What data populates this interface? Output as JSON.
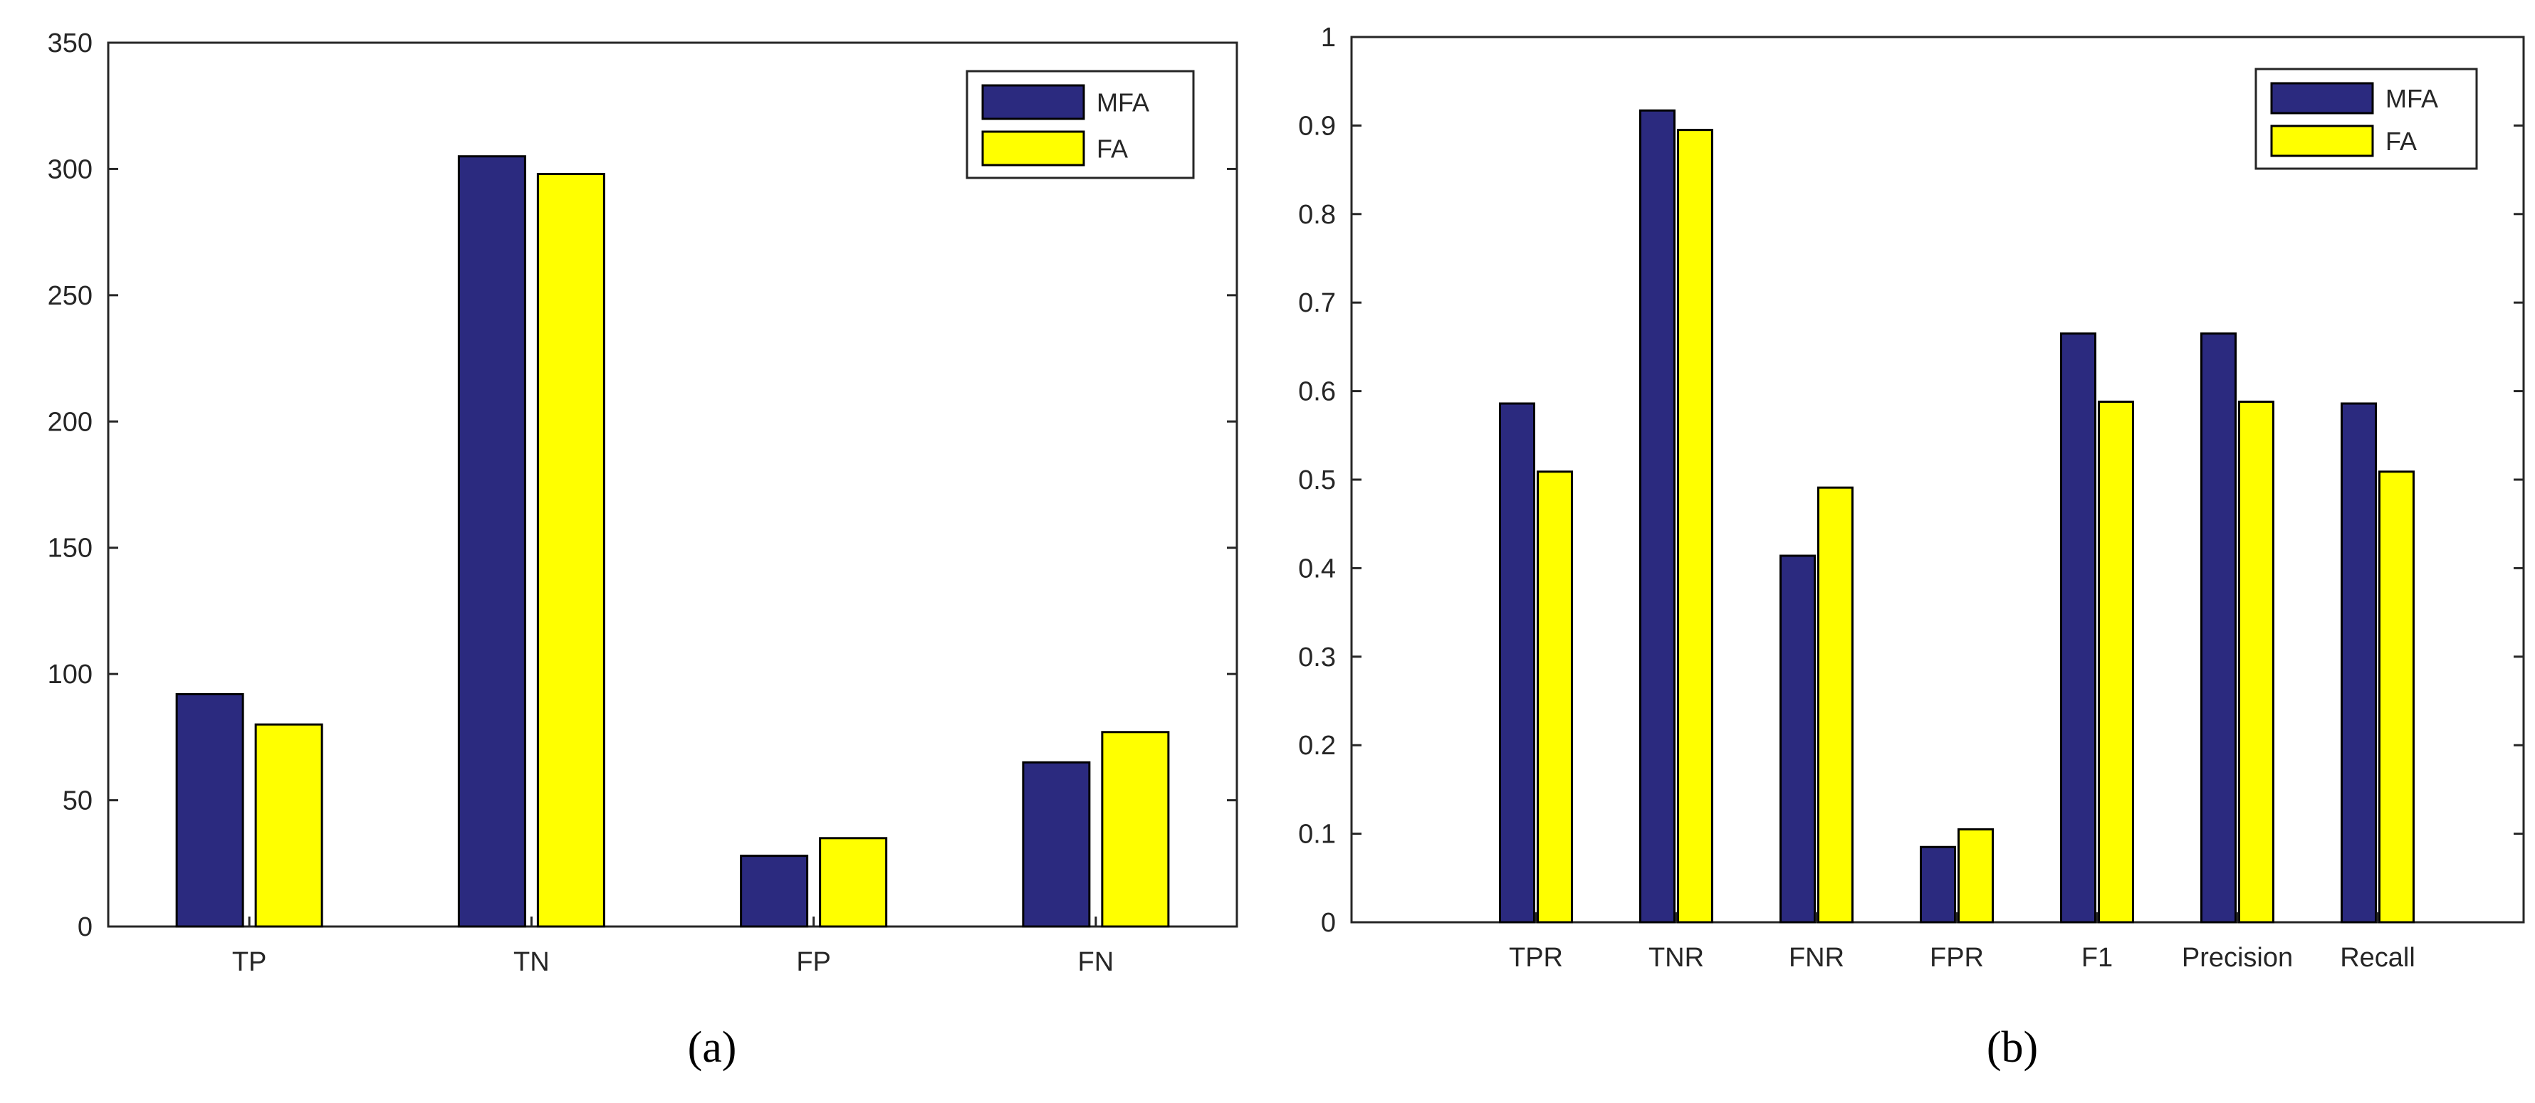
{
  "chart_data": [
    {
      "type": "bar",
      "panel": "(a)",
      "categories": [
        "TP",
        "TN",
        "FP",
        "FN"
      ],
      "series": [
        {
          "name": "MFA",
          "color": "#2b2a7f",
          "values": [
            92,
            305,
            28,
            65
          ]
        },
        {
          "name": "FA",
          "color": "#ffff00",
          "values": [
            80,
            298,
            35,
            77
          ]
        }
      ],
      "ylim": [
        0,
        350
      ],
      "yticks": [
        0,
        50,
        100,
        150,
        200,
        250,
        300,
        350
      ],
      "ytick_labels": [
        "0",
        "50",
        "100",
        "150",
        "200",
        "250",
        "300",
        "350"
      ],
      "title": "",
      "xlabel": "",
      "ylabel": "",
      "legend_position": "top-right",
      "grid": false
    },
    {
      "type": "bar",
      "panel": "(b)",
      "categories": [
        "TPR",
        "TNR",
        "FNR",
        "FPR",
        "F1",
        "Precision",
        "Recall"
      ],
      "series": [
        {
          "name": "MFA",
          "color": "#2b2a7f",
          "values": [
            0.586,
            0.917,
            0.414,
            0.085,
            0.665,
            0.665,
            0.586
          ]
        },
        {
          "name": "FA",
          "color": "#ffff00",
          "values": [
            0.509,
            0.895,
            0.491,
            0.105,
            0.588,
            0.588,
            0.509
          ]
        }
      ],
      "ylim": [
        0,
        1
      ],
      "yticks": [
        0,
        0.1,
        0.2,
        0.3,
        0.4,
        0.5,
        0.6,
        0.7,
        0.8,
        0.9,
        1
      ],
      "ytick_labels": [
        "0",
        "0.1",
        "0.2",
        "0.3",
        "0.4",
        "0.5",
        "0.6",
        "0.7",
        "0.8",
        "0.9",
        "1"
      ],
      "title": "",
      "xlabel": "",
      "ylabel": "",
      "legend_position": "top-right",
      "grid": false
    }
  ]
}
